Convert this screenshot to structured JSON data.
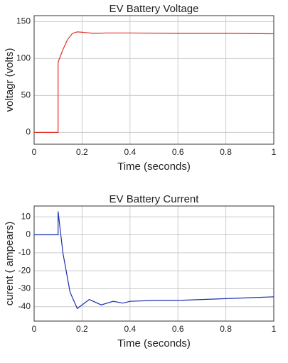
{
  "chart_data": [
    {
      "type": "line",
      "title": "EV Battery Voltage",
      "xlabel": "Time (seconds)",
      "ylabel": "voltagr (volts)",
      "x": [
        0,
        0.1,
        0.1,
        0.12,
        0.14,
        0.16,
        0.18,
        0.2,
        0.25,
        0.3,
        0.4,
        0.6,
        0.8,
        1.0
      ],
      "values": [
        0,
        0,
        95,
        112,
        126,
        134,
        136,
        135.5,
        134,
        134.5,
        134.5,
        134,
        134,
        133.5
      ],
      "color": "#e0302a",
      "xlim": [
        0,
        1
      ],
      "xticks": [
        0,
        0.2,
        0.4,
        0.6,
        0.8,
        1
      ],
      "ylim": [
        -16,
        158
      ],
      "yticks": [
        0,
        50,
        100,
        150
      ],
      "grid": true
    },
    {
      "type": "line",
      "title": "EV Battery Current",
      "xlabel": "Time (seconds)",
      "ylabel": "curent ( ampears)",
      "x": [
        0,
        0.1,
        0.1,
        0.12,
        0.15,
        0.18,
        0.2,
        0.23,
        0.28,
        0.33,
        0.37,
        0.4,
        0.5,
        0.6,
        0.7,
        0.8,
        0.9,
        1.0
      ],
      "values": [
        0,
        0,
        13,
        -10,
        -32,
        -41,
        -39,
        -36,
        -39,
        -37,
        -38,
        -37,
        -36.5,
        -36.5,
        -36,
        -35.5,
        -35,
        -34.5
      ],
      "color": "#1a2fb0",
      "xlim": [
        0,
        1
      ],
      "xticks": [
        0,
        0.2,
        0.4,
        0.6,
        0.8,
        1
      ],
      "ylim": [
        -48,
        16
      ],
      "yticks": [
        -40,
        -30,
        -20,
        -10,
        0,
        10
      ],
      "grid": true
    }
  ]
}
